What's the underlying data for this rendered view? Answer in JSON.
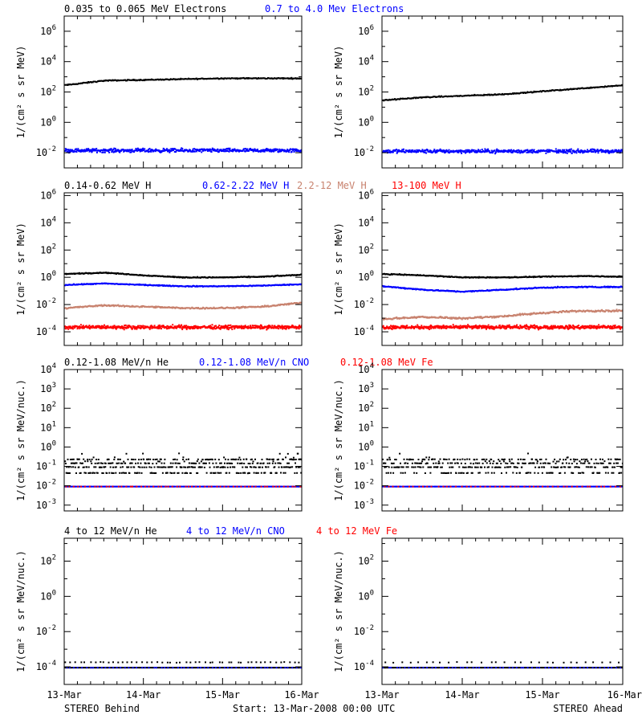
{
  "colors": {
    "black": "#000000",
    "blue": "#0000ff",
    "tan": "#c8826e",
    "red": "#ff0000",
    "axis": "#000000"
  },
  "chart_data": {
    "type": "scatter",
    "x_tick_labels": [
      "13-Mar",
      "14-Mar",
      "15-Mar",
      "16-Mar"
    ],
    "x_range_days": [
      0,
      3
    ],
    "footer": {
      "left": "STEREO Behind",
      "center": "Start: 13-Mar-2008 00:00 UTC",
      "right": "STEREO Ahead"
    },
    "rows": [
      {
        "ylabel": "1/(cm² s sr MeV)",
        "ylog_range": [
          -3,
          7
        ],
        "ytick_exps": [
          -2,
          0,
          2,
          4,
          6
        ],
        "legend": [
          {
            "text": "0.035 to 0.065 MeV Electrons",
            "color": "black"
          },
          {
            "text": "0.7 to 4.0 Mev Electrons",
            "color": "blue"
          }
        ],
        "panels": [
          {
            "name": "STEREO Behind",
            "series": [
              {
                "color": "black",
                "log10": [
                  2.5,
                  2.8,
                  2.85,
                  2.9,
                  2.95,
                  2.95,
                  2.95
                ],
                "noise": 0.05,
                "count": 300
              },
              {
                "color": "blue",
                "log10": [
                  -1.8,
                  -1.8,
                  -1.8,
                  -1.8,
                  -1.8,
                  -1.8,
                  -1.8
                ],
                "noise": 0.18,
                "count": 500
              }
            ]
          },
          {
            "name": "STEREO Ahead",
            "series": [
              {
                "color": "black",
                "log10": [
                  1.5,
                  1.7,
                  1.8,
                  1.9,
                  2.1,
                  2.3,
                  2.5
                ],
                "noise": 0.05,
                "count": 300
              },
              {
                "color": "blue",
                "log10": [
                  -1.85,
                  -1.85,
                  -1.85,
                  -1.85,
                  -1.85,
                  -1.85,
                  -1.85
                ],
                "noise": 0.18,
                "count": 500
              }
            ]
          }
        ]
      },
      {
        "ylabel": "1/(cm² s sr MeV)",
        "ylog_range": [
          -5,
          6.2
        ],
        "ytick_exps": [
          -4,
          -2,
          0,
          2,
          4,
          6
        ],
        "legend": [
          {
            "text": "0.14-0.62 MeV H",
            "color": "black"
          },
          {
            "text": "0.62-2.22 MeV H",
            "color": "blue"
          },
          {
            "text": "2.2-12 MeV H",
            "color": "tan"
          },
          {
            "text": "13-100 MeV H",
            "color": "red"
          }
        ],
        "panels": [
          {
            "name": "STEREO Behind",
            "series": [
              {
                "color": "black",
                "log10": [
                  0.3,
                  0.4,
                  0.2,
                  0.05,
                  0.05,
                  0.1,
                  0.25
                ],
                "noise": 0.05,
                "count": 350
              },
              {
                "color": "blue",
                "log10": [
                  -0.5,
                  -0.4,
                  -0.5,
                  -0.6,
                  -0.6,
                  -0.55,
                  -0.45
                ],
                "noise": 0.05,
                "count": 350
              },
              {
                "color": "tan",
                "log10": [
                  -2.2,
                  -2.0,
                  -2.1,
                  -2.2,
                  -2.2,
                  -2.1,
                  -1.8
                ],
                "noise": 0.08,
                "count": 350
              },
              {
                "color": "red",
                "log10": [
                  -3.6,
                  -3.6,
                  -3.6,
                  -3.6,
                  -3.6,
                  -3.6,
                  -3.6
                ],
                "noise": 0.2,
                "count": 600
              }
            ]
          },
          {
            "name": "STEREO Ahead",
            "series": [
              {
                "color": "black",
                "log10": [
                  0.3,
                  0.2,
                  0.05,
                  0.05,
                  0.1,
                  0.15,
                  0.1
                ],
                "noise": 0.05,
                "count": 350
              },
              {
                "color": "blue",
                "log10": [
                  -0.6,
                  -0.85,
                  -1.0,
                  -0.85,
                  -0.7,
                  -0.65,
                  -0.65
                ],
                "noise": 0.06,
                "count": 350
              },
              {
                "color": "tan",
                "log10": [
                  -3.0,
                  -2.85,
                  -2.95,
                  -2.8,
                  -2.55,
                  -2.4,
                  -2.4
                ],
                "noise": 0.1,
                "count": 350
              },
              {
                "color": "red",
                "log10": [
                  -3.6,
                  -3.6,
                  -3.6,
                  -3.6,
                  -3.6,
                  -3.6,
                  -3.6
                ],
                "noise": 0.2,
                "count": 600
              }
            ]
          }
        ]
      },
      {
        "ylabel": "1/(cm² s sr MeV/nuc.)",
        "ylog_range": [
          -3.3,
          4
        ],
        "ytick_exps": [
          -3,
          -2,
          -1,
          0,
          1,
          2,
          3,
          4
        ],
        "legend": [
          {
            "text": "0.12-1.08 MeV/n He",
            "color": "black"
          },
          {
            "text": "0.12-1.08 MeV/n CNO",
            "color": "blue"
          },
          {
            "text": "0.12-1.08 MeV Fe",
            "color": "red"
          }
        ],
        "panels": [
          {
            "name": "STEREO Behind",
            "series": [
              {
                "color": "black",
                "log10": [
                  -0.8,
                  -0.8,
                  -0.8,
                  -0.8,
                  -0.8,
                  -0.8,
                  -0.8
                ],
                "noise": 0.35,
                "count": 450,
                "quantized": true
              },
              {
                "color": "blue",
                "log10": [
                  -2.0,
                  -2.0,
                  -2.0,
                  -2.0,
                  -2.0,
                  -2.0,
                  -2.0
                ],
                "noise": 0.0,
                "count": 250
              },
              {
                "color": "red",
                "log10": [
                  -2.0,
                  -2.0,
                  -2.0,
                  -2.0,
                  -2.0,
                  -2.0,
                  -2.0
                ],
                "noise": 0.0,
                "count": 60
              }
            ]
          },
          {
            "name": "STEREO Ahead",
            "series": [
              {
                "color": "black",
                "log10": [
                  -1.0,
                  -1.0,
                  -1.0,
                  -1.0,
                  -1.0,
                  -1.0,
                  -1.0
                ],
                "noise": 0.3,
                "count": 400,
                "quantized": true
              },
              {
                "color": "blue",
                "log10": [
                  -2.0,
                  -2.0,
                  -2.0,
                  -2.0,
                  -2.0,
                  -2.0,
                  -2.0
                ],
                "noise": 0.0,
                "count": 250
              },
              {
                "color": "red",
                "log10": [
                  -2.0,
                  -2.0,
                  -2.0,
                  -2.0,
                  -2.0,
                  -2.0,
                  -2.0
                ],
                "noise": 0.0,
                "count": 50
              }
            ]
          }
        ]
      },
      {
        "ylabel": "1/(cm² s sr MeV/nuc.)",
        "ylog_range": [
          -5,
          3.3
        ],
        "ytick_exps": [
          -4,
          -2,
          0,
          2
        ],
        "legend": [
          {
            "text": "4 to 12 MeV/n He",
            "color": "black"
          },
          {
            "text": "4 to 12 MeV/n CNO",
            "color": "blue"
          },
          {
            "text": "4 to 12 MeV Fe",
            "color": "red"
          }
        ],
        "panels": [
          {
            "name": "STEREO Behind",
            "series": [
              {
                "color": "black",
                "log10": [
                  -4.0,
                  -4.0,
                  -4.0,
                  -4.0,
                  -4.0,
                  -4.0,
                  -4.0
                ],
                "noise": 0.0,
                "count": 220
              },
              {
                "color": "black",
                "log10": [
                  -3.7,
                  -3.7,
                  -3.7,
                  -3.7,
                  -3.7,
                  -3.7,
                  -3.7
                ],
                "noise": 0.03,
                "count": 50
              },
              {
                "color": "blue",
                "log10": [
                  -4.0,
                  -4.0,
                  -4.0,
                  -4.0,
                  -4.0,
                  -4.0,
                  -4.0
                ],
                "noise": 0.0,
                "count": 60
              }
            ]
          },
          {
            "name": "STEREO Ahead",
            "series": [
              {
                "color": "black",
                "log10": [
                  -4.0,
                  -4.0,
                  -4.0,
                  -4.0,
                  -4.0,
                  -4.0,
                  -4.0
                ],
                "noise": 0.0,
                "count": 220
              },
              {
                "color": "black",
                "log10": [
                  -3.7,
                  -3.7,
                  -3.7,
                  -3.7,
                  -3.7,
                  -3.7,
                  -3.7
                ],
                "noise": 0.03,
                "count": 30
              },
              {
                "color": "blue",
                "log10": [
                  -4.0,
                  -4.0,
                  -4.0,
                  -4.0,
                  -4.0,
                  -4.0,
                  -4.0
                ],
                "noise": 0.0,
                "count": 60
              }
            ]
          }
        ]
      }
    ]
  }
}
